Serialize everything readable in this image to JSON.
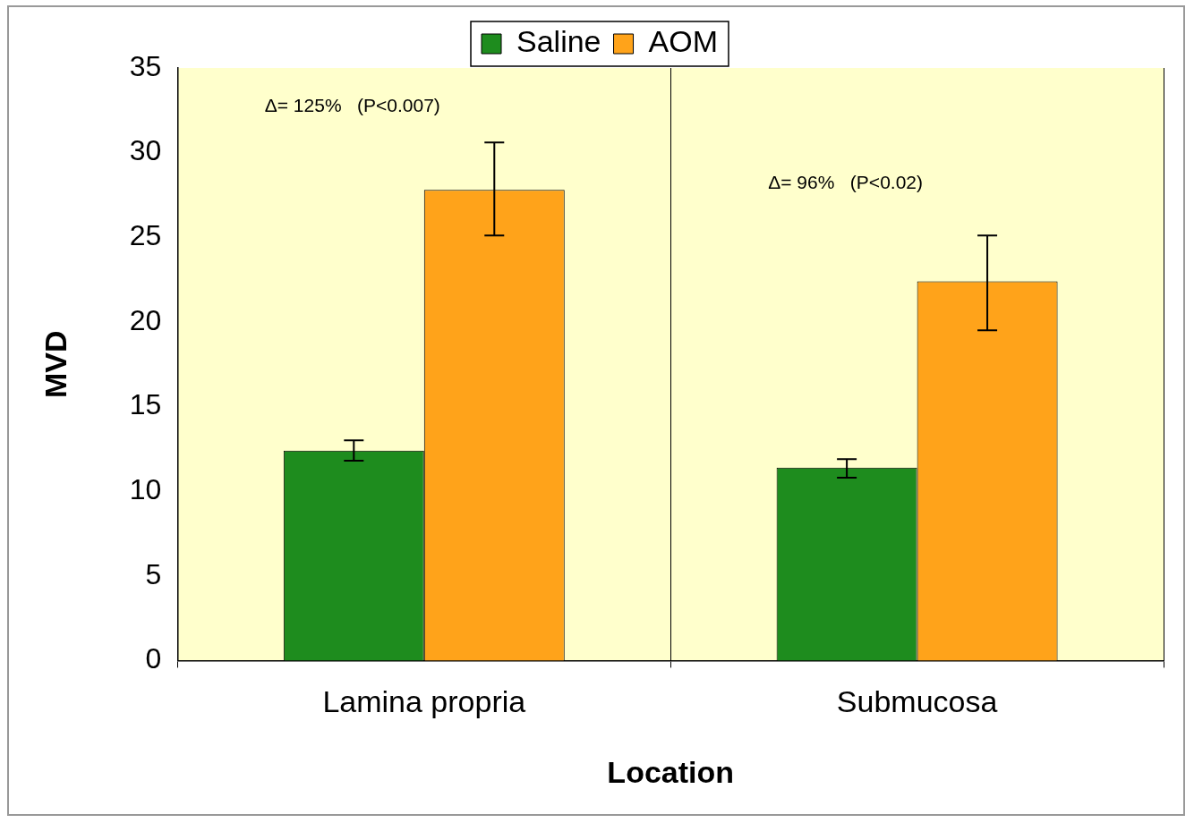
{
  "chart_data": {
    "type": "bar",
    "xlabel": "Location",
    "ylabel": "MVD",
    "categories": [
      "Lamina propria",
      "Submucosa"
    ],
    "series": [
      {
        "name": "Saline",
        "color": "#1e8c1e",
        "values": [
          12.4,
          11.4
        ],
        "errors": [
          [
            11.8,
            13.0
          ],
          [
            10.8,
            11.9
          ]
        ]
      },
      {
        "name": "AOM",
        "color": "#ffa31a",
        "values": [
          27.8,
          22.4
        ],
        "errors": [
          [
            25.1,
            30.6
          ],
          [
            19.5,
            25.1
          ]
        ]
      }
    ],
    "ylim": [
      0,
      35
    ],
    "yticks": [
      0,
      5,
      10,
      15,
      20,
      25,
      30,
      35
    ],
    "grid": "x",
    "legend": "top",
    "annotations": [
      "Δ= 125%   (P<0.007)",
      "Δ= 96%   (P<0.02)"
    ]
  }
}
